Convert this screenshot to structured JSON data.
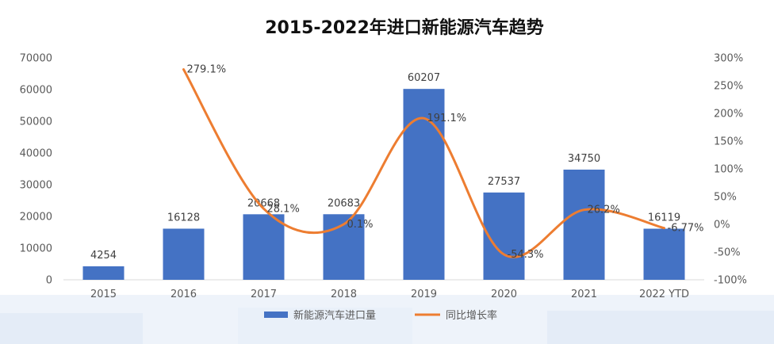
{
  "chart_data": {
    "type": "bar",
    "title": "2015-2022年进口新能源汽车趋势",
    "categories": [
      "2015",
      "2016",
      "2017",
      "2018",
      "2019",
      "2020",
      "2021",
      "2022 YTD"
    ],
    "series": [
      {
        "name": "新能源汽车进口量",
        "type": "bar",
        "axis": "left",
        "color": "#4472C4",
        "values": [
          4254,
          16128,
          20668,
          20683,
          60207,
          27537,
          34750,
          16119
        ],
        "labels": [
          "4254",
          "16128",
          "20668",
          "20683",
          "60207",
          "27537",
          "34750",
          "16119"
        ]
      },
      {
        "name": "同比增长率",
        "type": "line",
        "axis": "right",
        "color": "#ED7D31",
        "values": [
          null,
          279.1,
          28.1,
          0.1,
          191.1,
          -54.3,
          26.2,
          -6.77
        ],
        "labels": [
          "",
          "279.1%",
          "28.1%",
          "0.1%",
          "191.1%",
          "-54.3%",
          "26.2%",
          "-6.77%"
        ]
      }
    ],
    "y_left": {
      "ylim": [
        0,
        70000
      ],
      "ticks": [
        0,
        10000,
        20000,
        30000,
        40000,
        50000,
        60000,
        70000
      ],
      "tick_labels": [
        "0",
        "10000",
        "20000",
        "30000",
        "40000",
        "50000",
        "60000",
        "70000"
      ]
    },
    "y_right": {
      "ylim": [
        -100,
        300
      ],
      "ticks": [
        -100,
        -50,
        0,
        50,
        100,
        150,
        200,
        250,
        300
      ],
      "tick_labels": [
        "-100%",
        "-50%",
        "0%",
        "50%",
        "100%",
        "150%",
        "200%",
        "250%",
        "300%"
      ]
    },
    "grid": false,
    "legend": "bottom"
  }
}
